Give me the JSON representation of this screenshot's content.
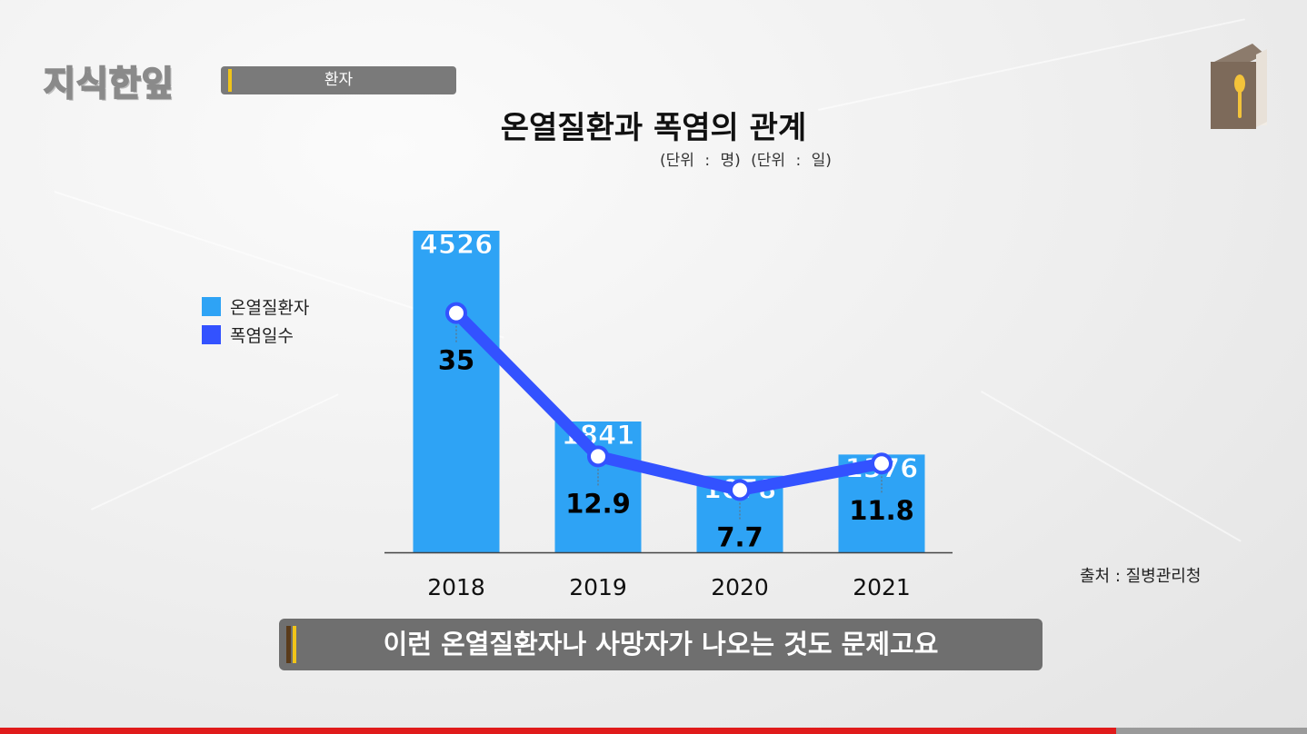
{
  "header": {
    "logo_text": "지식한잎",
    "topic_label": "환자"
  },
  "chart_title": "온열질환과 폭염의 관계",
  "units_label": "(단위 : 명) (단위 : 일)",
  "source_label": "출처 : 질병관리청",
  "subtitle": "이런 온열질환자나 사망자가 나오는 것도 문제고요",
  "video": {
    "progress": 0.854
  },
  "colors": {
    "bar": "#2ea3f5",
    "line": "#3352ff",
    "topic_bar": "#7a7a7a",
    "accent": "#f0c419",
    "progress": "#e01b1b"
  },
  "icons": {
    "brand_icon": "book-spoon-icon"
  },
  "chart_data": {
    "type": "bar",
    "title": "온열질환과 폭염의 관계",
    "categories": [
      "2018",
      "2019",
      "2020",
      "2021"
    ],
    "series": [
      {
        "name": "온열질환자",
        "type": "bar",
        "values": [
          4526,
          1841,
          1078,
          1376
        ],
        "labels": [
          "4526",
          "1841",
          "1078",
          "1376"
        ]
      },
      {
        "name": "폭염일수",
        "type": "line",
        "values": [
          35,
          12.9,
          7.7,
          11.8
        ],
        "labels": [
          "35",
          "12.9",
          "7.7",
          "11.8"
        ]
      }
    ],
    "legend_position": "left",
    "grid": false
  }
}
